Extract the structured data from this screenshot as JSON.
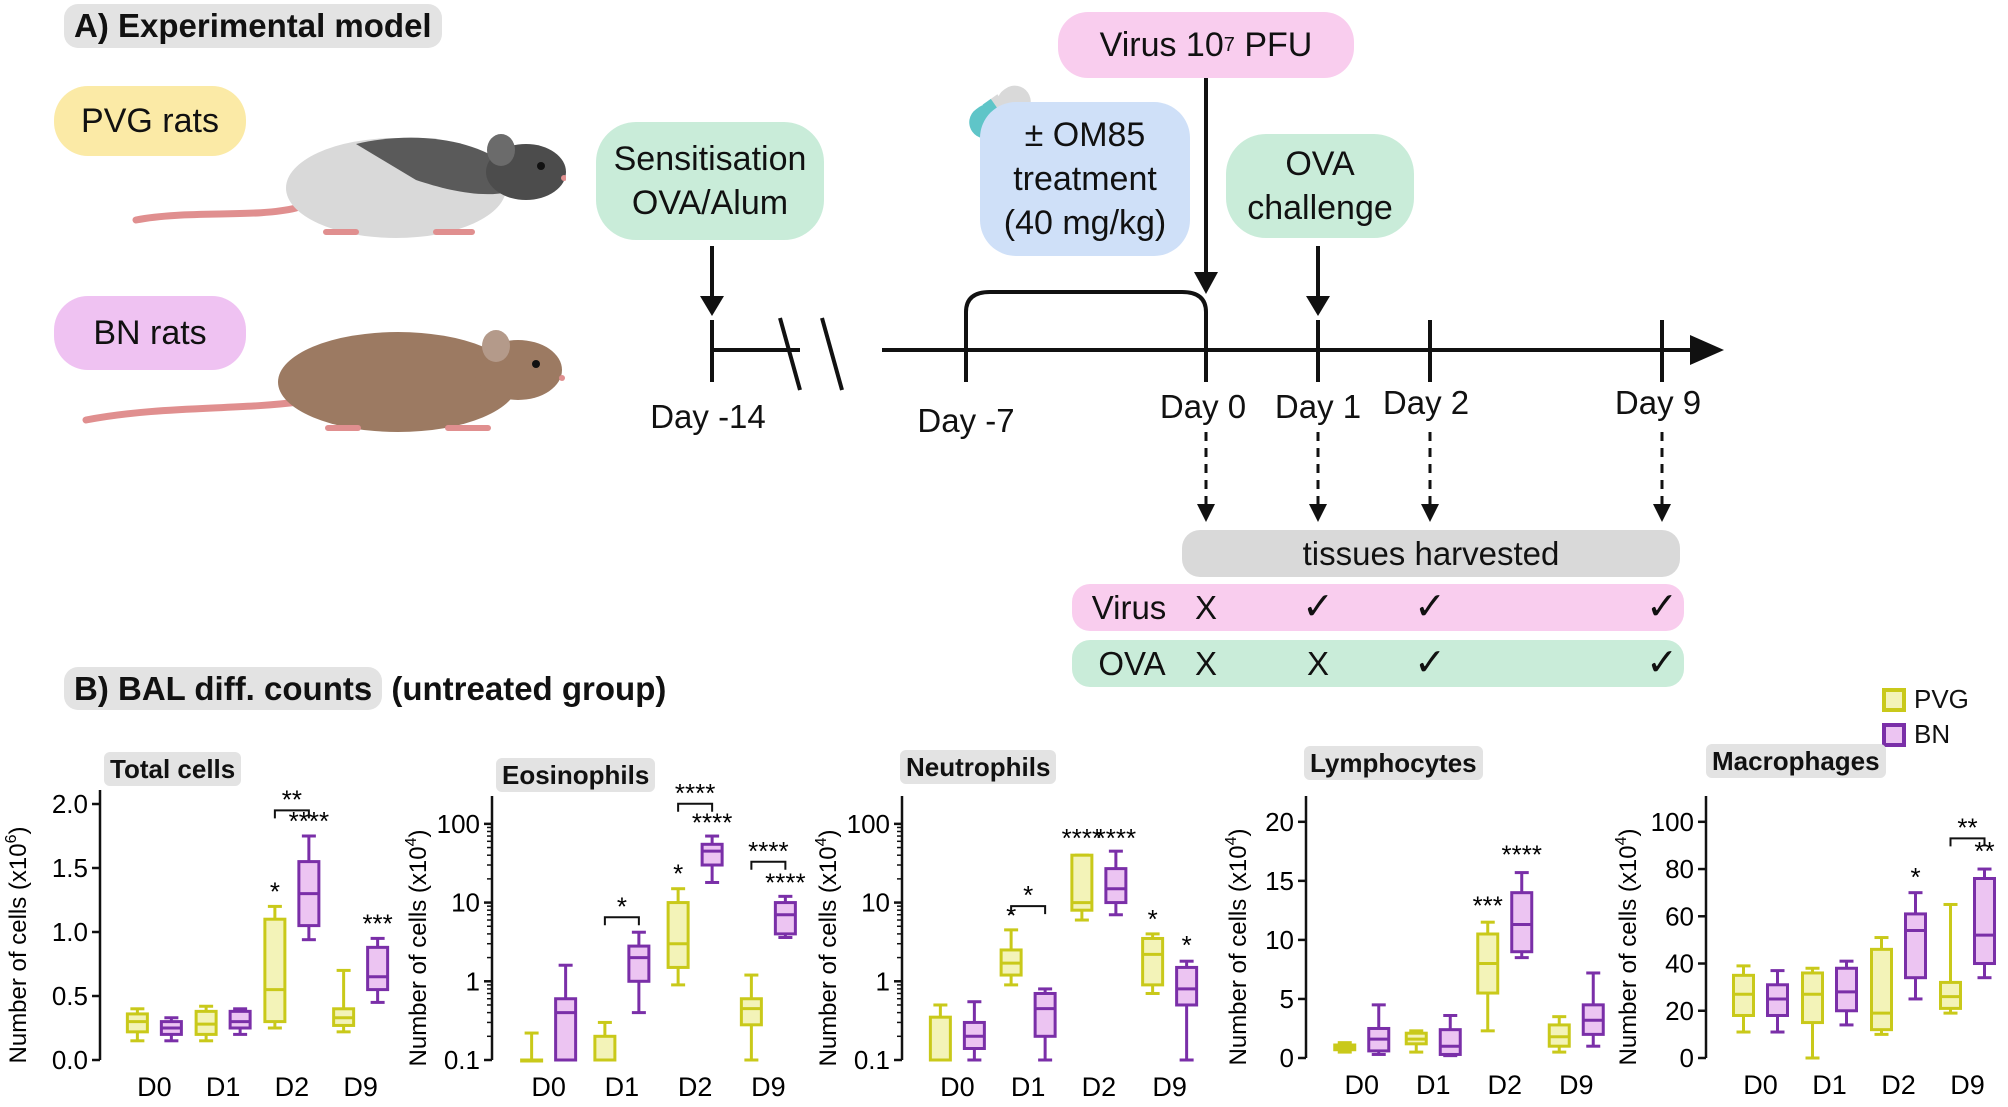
{
  "section_a": {
    "title": "A) Experimental model"
  },
  "rats": {
    "pvg": "PVG rats",
    "bn": "BN rats"
  },
  "timeline": {
    "sensitisation": "Sensitisation\nOVA/Alum",
    "om85": "± OM85\ntreatment\n(40 mg/kg)",
    "virus_label": "Virus 10",
    "virus_exp": "7",
    "virus_unit": " PFU",
    "ova_challenge": "OVA\nchallenge",
    "days": [
      "Day -14",
      "Day -7",
      "Day 0",
      "Day 1",
      "Day 2",
      "Day 9"
    ],
    "tissues": "tissues harvested",
    "virus_row": {
      "label": "Virus",
      "marks": [
        "X",
        "✓",
        "✓",
        "✓"
      ]
    },
    "ova_row": {
      "label": "OVA",
      "marks": [
        "X",
        "X",
        "✓",
        "✓"
      ]
    }
  },
  "section_b": {
    "title": "B) BAL diff. counts",
    "subtitle": " (untreated group)"
  },
  "legend": {
    "pvg": "PVG",
    "bn": "BN"
  },
  "colors": {
    "pvg": "#c9c91a",
    "pvg_fill": "#f3f3b8",
    "bn": "#7a2fa8",
    "bn_fill": "#ecc4f2",
    "pink": "#f9cdee",
    "green": "#c9ecd9",
    "blue": "#cfe0f8",
    "yellow": "#fbeaa6",
    "purple": "#efc2f2",
    "grey": "#d9d9d9"
  },
  "chart_data": [
    {
      "type": "box",
      "title": "Total cells",
      "ylabel": "Number of cells (x10",
      "ylabel_exp": "6",
      "scale": "linear",
      "ylim": [
        0,
        2.0
      ],
      "yticks": [
        "0.0",
        "0.5",
        "1.0",
        "1.5",
        "2.0"
      ],
      "ytick_values": [
        0,
        0.5,
        1.0,
        1.5,
        2.0
      ],
      "categories": [
        "D0",
        "D1",
        "D2",
        "D9"
      ],
      "series": [
        {
          "name": "PVG",
          "boxes": [
            [
              0.15,
              0.22,
              0.3,
              0.36,
              0.4
            ],
            [
              0.15,
              0.2,
              0.28,
              0.38,
              0.42
            ],
            [
              0.25,
              0.3,
              0.55,
              1.1,
              1.2
            ],
            [
              0.22,
              0.27,
              0.33,
              0.4,
              0.7
            ]
          ]
        },
        {
          "name": "BN",
          "boxes": [
            [
              0.15,
              0.2,
              0.25,
              0.3,
              0.33
            ],
            [
              0.2,
              0.25,
              0.3,
              0.38,
              0.4
            ],
            [
              0.94,
              1.05,
              1.3,
              1.55,
              1.75
            ],
            [
              0.45,
              0.55,
              0.65,
              0.88,
              0.95
            ]
          ]
        }
      ],
      "annotations": [
        {
          "text": "*",
          "cat": 2,
          "series": 0,
          "y": 1.23
        },
        {
          "text": "****",
          "cat": 2,
          "series": 1,
          "y": 1.78
        },
        {
          "text": "**",
          "cat": 2,
          "bracket": true,
          "y": 1.95
        },
        {
          "text": "***",
          "cat": 3,
          "series": 1,
          "y": 0.98
        }
      ]
    },
    {
      "type": "box",
      "title": "Eosinophils",
      "ylabel": "Number of cells (x10",
      "ylabel_exp": "4",
      "scale": "log",
      "ylim": [
        0.1,
        150
      ],
      "yticks": [
        "0.1",
        "1",
        "10",
        "100"
      ],
      "ytick_values": [
        0.1,
        1,
        10,
        100
      ],
      "categories": [
        "D0",
        "D1",
        "D2",
        "D9"
      ],
      "series": [
        {
          "name": "PVG",
          "boxes": [
            [
              0.1,
              0.1,
              0.1,
              0.1,
              0.22
            ],
            [
              0.1,
              0.1,
              0.1,
              0.2,
              0.3
            ],
            [
              0.9,
              1.5,
              3,
              10,
              15
            ],
            [
              0.1,
              0.28,
              0.45,
              0.6,
              1.2
            ]
          ]
        },
        {
          "name": "BN",
          "boxes": [
            [
              0.1,
              0.1,
              0.4,
              0.6,
              1.6
            ],
            [
              0.4,
              1.0,
              2.0,
              2.8,
              4.2
            ],
            [
              18,
              30,
              45,
              55,
              70
            ],
            [
              3.6,
              4.0,
              7.0,
              10,
              12
            ]
          ]
        }
      ],
      "annotations": [
        {
          "text": "*",
          "cat": 2,
          "series": 0,
          "y": 17
        },
        {
          "text": "****",
          "cat": 2,
          "series": 1,
          "y": 75
        },
        {
          "text": "****",
          "cat": 2,
          "bracket": true,
          "y": 180
        },
        {
          "text": "*",
          "cat": 1,
          "bracket": true,
          "y": 6.5
        },
        {
          "text": "****",
          "cat": 3,
          "series": 1,
          "y": 13
        },
        {
          "text": "****",
          "cat": 3,
          "bracket": true,
          "y": 33
        }
      ]
    },
    {
      "type": "box",
      "title": "Neutrophils",
      "ylabel": "Number of cells (x10",
      "ylabel_exp": "4",
      "scale": "log",
      "ylim": [
        0.1,
        150
      ],
      "yticks": [
        "0.1",
        "1",
        "10",
        "100"
      ],
      "ytick_values": [
        0.1,
        1,
        10,
        100
      ],
      "categories": [
        "D0",
        "D1",
        "D2",
        "D9"
      ],
      "series": [
        {
          "name": "PVG",
          "boxes": [
            [
              0.1,
              0.1,
              0.1,
              0.35,
              0.5
            ],
            [
              0.9,
              1.2,
              1.7,
              2.5,
              4.5
            ],
            [
              6,
              8,
              10,
              40,
              40
            ],
            [
              0.7,
              0.9,
              2.2,
              3.5,
              4
            ]
          ]
        },
        {
          "name": "BN",
          "boxes": [
            [
              0.1,
              0.14,
              0.2,
              0.3,
              0.55
            ],
            [
              0.1,
              0.2,
              0.45,
              0.7,
              0.8
            ],
            [
              7,
              10,
              15,
              27,
              45
            ],
            [
              0.1,
              0.5,
              0.8,
              1.5,
              1.8
            ]
          ]
        }
      ],
      "annotations": [
        {
          "text": "*",
          "cat": 1,
          "series": 0,
          "y": 5
        },
        {
          "text": "*",
          "cat": 1,
          "bracket": true,
          "y": 9
        },
        {
          "text": "****",
          "cat": 2,
          "series": 0,
          "y": 48
        },
        {
          "text": "****",
          "cat": 2,
          "series": 1,
          "y": 48
        },
        {
          "text": "*",
          "cat": 3,
          "series": 0,
          "y": 4.5
        },
        {
          "text": "*",
          "cat": 3,
          "series": 1,
          "y": 2.1
        }
      ]
    },
    {
      "type": "box",
      "title": "Lymphocytes",
      "ylabel": "Number of cells (x10",
      "ylabel_exp": "4",
      "scale": "linear",
      "ylim": [
        0,
        21
      ],
      "yticks": [
        "0",
        "5",
        "10",
        "15",
        "20"
      ],
      "ytick_values": [
        0,
        5,
        10,
        15,
        20
      ],
      "categories": [
        "D0",
        "D1",
        "D2",
        "D9"
      ],
      "series": [
        {
          "name": "PVG",
          "boxes": [
            [
              0.5,
              0.7,
              0.9,
              1.1,
              1.3
            ],
            [
              0.5,
              1.2,
              1.6,
              2.1,
              2.3
            ],
            [
              2.3,
              5.5,
              8,
              10.5,
              11.5
            ],
            [
              0.5,
              1,
              1.8,
              2.8,
              3.5
            ]
          ]
        },
        {
          "name": "BN",
          "boxes": [
            [
              0.3,
              0.6,
              1.6,
              2.5,
              4.5
            ],
            [
              0.2,
              0.3,
              1,
              2.4,
              3.6
            ],
            [
              8.5,
              9,
              11.3,
              14,
              15.7
            ],
            [
              1,
              2,
              3.2,
              4.5,
              7.2
            ]
          ]
        }
      ],
      "annotations": [
        {
          "text": "***",
          "cat": 2,
          "series": 0,
          "y": 12
        },
        {
          "text": "****",
          "cat": 2,
          "series": 1,
          "y": 16.3
        }
      ]
    },
    {
      "type": "box",
      "title": "Macrophages",
      "ylabel": "Number of cells (x10",
      "ylabel_exp": "4",
      "scale": "linear",
      "ylim": [
        0,
        105
      ],
      "yticks": [
        "0",
        "20",
        "40",
        "60",
        "80",
        "100"
      ],
      "ytick_values": [
        0,
        20,
        40,
        60,
        80,
        100
      ],
      "categories": [
        "D0",
        "D1",
        "D2",
        "D9"
      ],
      "series": [
        {
          "name": "PVG",
          "boxes": [
            [
              11,
              18,
              27,
              35,
              39
            ],
            [
              0,
              15,
              27,
              36,
              38
            ],
            [
              10,
              12,
              19,
              46,
              51
            ],
            [
              19,
              21,
              26,
              32,
              65
            ]
          ]
        },
        {
          "name": "BN",
          "boxes": [
            [
              11,
              18,
              25,
              31,
              37
            ],
            [
              14,
              20,
              28,
              38,
              41
            ],
            [
              25,
              34,
              54,
              61,
              70
            ],
            [
              34,
              40,
              52,
              76,
              80
            ]
          ]
        }
      ],
      "annotations": [
        {
          "text": "*",
          "cat": 2,
          "series": 1,
          "y": 72
        },
        {
          "text": "**",
          "cat": 3,
          "series": 1,
          "y": 83
        },
        {
          "text": "**",
          "cat": 3,
          "bracket": true,
          "y": 93
        }
      ]
    }
  ]
}
